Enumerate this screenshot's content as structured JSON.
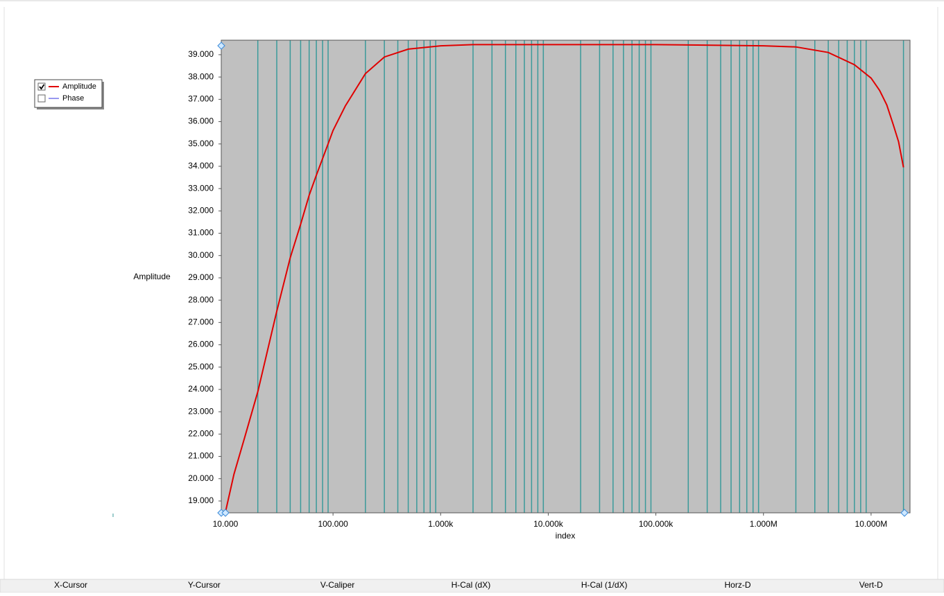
{
  "chart_data": {
    "type": "line",
    "x_label": "index",
    "y_label": "Amplitude",
    "xscale": "log",
    "xlim": [
      9.15,
      23000000
    ],
    "ylim": [
      18.47,
      39.65
    ],
    "xticks": [
      {
        "value": 10,
        "label": "10.000"
      },
      {
        "value": 100,
        "label": "100.000"
      },
      {
        "value": 1000,
        "label": "1.000k"
      },
      {
        "value": 10000,
        "label": "10.000k"
      },
      {
        "value": 100000,
        "label": "100.000k"
      },
      {
        "value": 1000000,
        "label": "1.000M"
      },
      {
        "value": 10000000,
        "label": "10.000M"
      }
    ],
    "xgrid": [
      20,
      30,
      40,
      50,
      60,
      70,
      80,
      90,
      200,
      300,
      400,
      500,
      600,
      700,
      800,
      900,
      2000,
      3000,
      4000,
      5000,
      6000,
      7000,
      8000,
      9000,
      20000,
      30000,
      40000,
      50000,
      60000,
      70000,
      80000,
      90000,
      200000,
      300000,
      400000,
      500000,
      600000,
      700000,
      800000,
      900000,
      2000000,
      3000000,
      4000000,
      5000000,
      6000000,
      7000000,
      8000000,
      9000000,
      20000000
    ],
    "yticks": [
      {
        "value": 19,
        "label": "19.000"
      },
      {
        "value": 20,
        "label": "20.000"
      },
      {
        "value": 21,
        "label": "21.000"
      },
      {
        "value": 22,
        "label": "22.000"
      },
      {
        "value": 23,
        "label": "23.000"
      },
      {
        "value": 24,
        "label": "24.000"
      },
      {
        "value": 25,
        "label": "25.000"
      },
      {
        "value": 26,
        "label": "26.000"
      },
      {
        "value": 27,
        "label": "27.000"
      },
      {
        "value": 28,
        "label": "28.000"
      },
      {
        "value": 29,
        "label": "29.000"
      },
      {
        "value": 30,
        "label": "30.000"
      },
      {
        "value": 31,
        "label": "31.000"
      },
      {
        "value": 32,
        "label": "32.000"
      },
      {
        "value": 33,
        "label": "33.000"
      },
      {
        "value": 34,
        "label": "34.000"
      },
      {
        "value": 35,
        "label": "35.000"
      },
      {
        "value": 36,
        "label": "36.000"
      },
      {
        "value": 37,
        "label": "37.000"
      },
      {
        "value": 38,
        "label": "38.000"
      },
      {
        "value": 39,
        "label": "39.000"
      }
    ],
    "x": [
      10,
      12,
      15,
      20,
      30,
      40,
      50,
      60,
      70,
      90,
      100,
      130,
      200,
      300,
      500,
      1000,
      2000,
      10000,
      100000,
      1000000,
      2000000,
      4000000,
      7000000,
      10000000,
      12000000,
      14000000,
      16000000,
      18000000,
      20000000
    ],
    "series": [
      {
        "name": "Amplitude",
        "color": "#e00000",
        "values": [
          18.5,
          20.2,
          21.8,
          23.9,
          27.5,
          29.9,
          31.4,
          32.7,
          33.6,
          35.0,
          35.6,
          36.7,
          38.15,
          38.9,
          39.25,
          39.4,
          39.45,
          39.45,
          39.45,
          39.4,
          39.35,
          39.1,
          38.55,
          37.95,
          37.4,
          36.75,
          35.9,
          35.1,
          33.95
        ]
      }
    ],
    "legend": [
      {
        "name": "Amplitude",
        "color": "#e00000",
        "checked": true
      },
      {
        "name": "Phase",
        "color": "#3030e0",
        "checked": false
      }
    ],
    "plot_color": "#c0c0c0",
    "grid_color": "#3a9a9a"
  },
  "status_bar": [
    "X-Cursor",
    "Y-Cursor",
    "V-Caliper",
    "H-Cal (dX)",
    "H-Cal (1/dX)",
    "Horz-D",
    "Vert-D"
  ]
}
